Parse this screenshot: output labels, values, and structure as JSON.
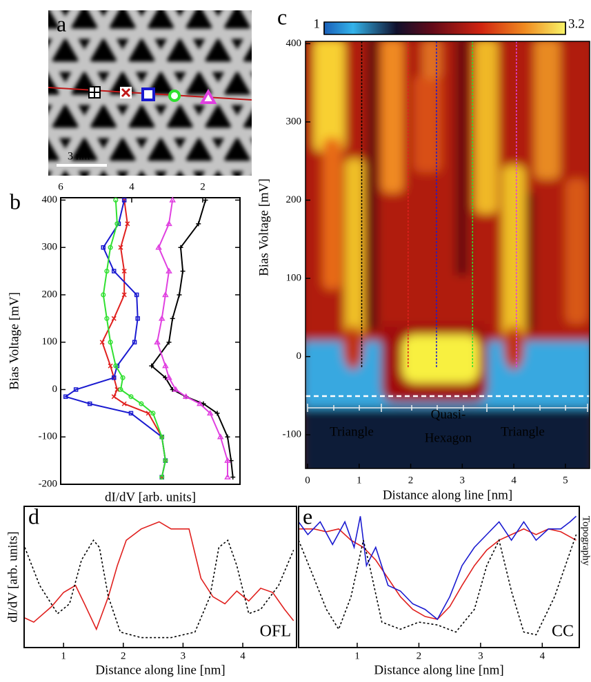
{
  "chart_data": [
    {
      "type": "image",
      "label": "a",
      "scale_bar": "3 nm"
    },
    {
      "type": "line",
      "orientation": "horizontal",
      "label": "b",
      "xlabel": "dI/dV [arb. units]",
      "ylabel": "Bias Voltage [mV]",
      "x_axis": "top",
      "xlim": [
        6.0,
        0.95
      ],
      "xticks": [
        6,
        4,
        2
      ],
      "ylim": [
        -200,
        405
      ],
      "yticks": [
        -200,
        -100,
        0,
        100,
        200,
        300,
        400
      ],
      "y": [
        400,
        350,
        300,
        250,
        200,
        150,
        100,
        50,
        25,
        0,
        -15,
        -30,
        -50,
        -100,
        -150,
        -185
      ],
      "series": [
        {
          "color": "#000000",
          "marker": "plus",
          "values": [
            1.92,
            2.12,
            2.62,
            2.56,
            2.66,
            2.85,
            2.95,
            3.44,
            3.05,
            2.85,
            2.47,
            1.98,
            1.59,
            1.3,
            1.2,
            1.15
          ]
        },
        {
          "color": "#e0201e",
          "marker": "x",
          "values": [
            4.21,
            4.12,
            4.31,
            4.21,
            4.21,
            4.5,
            4.83,
            4.6,
            4.5,
            4.41,
            4.5,
            4.21,
            3.53,
            3.15,
            3.05,
            3.15
          ]
        },
        {
          "color": "#1a1ad0",
          "marker": "square",
          "values": [
            4.21,
            4.37,
            4.8,
            4.5,
            3.86,
            3.83,
            3.92,
            4.41,
            4.5,
            5.57,
            5.86,
            5.18,
            4.02,
            3.15,
            3.05,
            3.15
          ]
        },
        {
          "color": "#30e030",
          "marker": "circle",
          "values": [
            4.45,
            4.41,
            4.6,
            4.7,
            4.8,
            4.7,
            4.6,
            4.45,
            4.25,
            4.31,
            4.02,
            3.73,
            3.4,
            3.15,
            3.05,
            3.15
          ]
        },
        {
          "color": "#e040e0",
          "marker": "triangle",
          "values": [
            2.85,
            2.95,
            3.24,
            2.95,
            3.05,
            3.15,
            3.28,
            3.05,
            2.95,
            2.76,
            2.47,
            2.08,
            1.79,
            1.5,
            1.3,
            1.3
          ]
        }
      ]
    },
    {
      "type": "heatmap",
      "label": "c",
      "xlabel": "Distance along line [nm]",
      "ylabel": "Bias Voltage [mV]",
      "xlim": [
        -0.04,
        5.47
      ],
      "xticks": [
        0,
        1,
        2,
        3,
        4,
        5
      ],
      "ylim": [
        -143,
        403
      ],
      "yticks": [
        -100,
        0,
        100,
        200,
        300,
        400
      ],
      "colorbar": {
        "lim": [
          1,
          3.2
        ],
        "ticks": [
          1,
          3.2
        ]
      },
      "profiles": {
        "x": [
          1.05,
          1.95,
          2.5,
          3.2,
          4.05
        ],
        "colors": [
          "#000000",
          "#e0201e",
          "#1a1ad0",
          "#30e030",
          "#e040e0"
        ]
      },
      "annotations": [
        "Triangle",
        "Quasi-",
        "Hexagon",
        "Triangle"
      ]
    },
    {
      "type": "line",
      "label": "d",
      "xlabel": "Distance along line [nm]",
      "ylabel": "dI/dV [arb. units]",
      "ylabel_color": "#e0201e",
      "annotation": "OFL",
      "annotation_color": "#e0201e",
      "xlim": [
        0.34,
        4.9
      ],
      "xticks": [
        1,
        2,
        3,
        4
      ],
      "ylim": [
        0,
        1
      ],
      "series": [
        {
          "color": "#e0201e",
          "dash": false,
          "x": [
            0.35,
            0.5,
            0.8,
            1.0,
            1.2,
            1.35,
            1.55,
            1.75,
            1.9,
            2.05,
            2.3,
            2.6,
            2.8,
            3.1,
            3.3,
            3.5,
            3.7,
            3.9,
            4.1,
            4.3,
            4.5,
            4.7,
            4.85
          ],
          "values": [
            0.21,
            0.18,
            0.29,
            0.39,
            0.44,
            0.31,
            0.13,
            0.36,
            0.58,
            0.76,
            0.84,
            0.89,
            0.84,
            0.84,
            0.49,
            0.36,
            0.31,
            0.4,
            0.33,
            0.42,
            0.39,
            0.27,
            0.19
          ]
        },
        {
          "color": "#000000",
          "dash": true,
          "x": [
            0.35,
            0.6,
            0.9,
            1.1,
            1.3,
            1.5,
            1.6,
            1.75,
            1.95,
            2.3,
            2.8,
            3.2,
            3.45,
            3.6,
            3.75,
            3.9,
            4.1,
            4.3,
            4.6,
            4.85
          ],
          "values": [
            0.71,
            0.44,
            0.24,
            0.31,
            0.62,
            0.76,
            0.71,
            0.36,
            0.11,
            0.07,
            0.07,
            0.11,
            0.36,
            0.71,
            0.76,
            0.58,
            0.24,
            0.27,
            0.44,
            0.69
          ]
        }
      ]
    },
    {
      "type": "line",
      "label": "e",
      "xlabel": "Distance along line [nm]",
      "y2label": "Topography",
      "annotation": "CC",
      "annotation_color": "#e0201e",
      "xlim": [
        0.05,
        4.6
      ],
      "xticks": [
        1,
        2,
        3,
        4
      ],
      "ylim": [
        0,
        1
      ],
      "series": [
        {
          "color": "#e0201e",
          "dash": false,
          "x": [
            0.05,
            0.3,
            0.5,
            0.7,
            0.9,
            1.1,
            1.3,
            1.5,
            1.7,
            1.9,
            2.1,
            2.3,
            2.5,
            2.7,
            2.9,
            3.1,
            3.3,
            3.5,
            3.7,
            3.9,
            4.1,
            4.3,
            4.55
          ],
          "values": [
            0.84,
            0.84,
            0.82,
            0.84,
            0.76,
            0.71,
            0.62,
            0.49,
            0.36,
            0.27,
            0.22,
            0.2,
            0.29,
            0.44,
            0.58,
            0.69,
            0.76,
            0.8,
            0.84,
            0.8,
            0.84,
            0.82,
            0.76
          ]
        },
        {
          "color": "#1a1ad0",
          "dash": false,
          "x": [
            0.05,
            0.2,
            0.4,
            0.6,
            0.8,
            0.95,
            1.05,
            1.15,
            1.3,
            1.5,
            1.7,
            1.9,
            2.1,
            2.3,
            2.5,
            2.7,
            2.9,
            3.1,
            3.3,
            3.5,
            3.7,
            3.9,
            4.1,
            4.3,
            4.45,
            4.55
          ],
          "values": [
            0.89,
            0.8,
            0.89,
            0.73,
            0.89,
            0.71,
            0.93,
            0.58,
            0.71,
            0.44,
            0.4,
            0.31,
            0.27,
            0.2,
            0.36,
            0.58,
            0.71,
            0.8,
            0.89,
            0.76,
            0.89,
            0.76,
            0.84,
            0.84,
            0.89,
            0.93
          ]
        },
        {
          "color": "#000000",
          "dash": true,
          "x": [
            0.05,
            0.3,
            0.5,
            0.7,
            0.9,
            1.1,
            1.2,
            1.4,
            1.7,
            2.0,
            2.3,
            2.6,
            2.9,
            3.1,
            3.3,
            3.5,
            3.7,
            3.9,
            4.2,
            4.55
          ],
          "values": [
            0.76,
            0.49,
            0.27,
            0.13,
            0.36,
            0.76,
            0.58,
            0.18,
            0.13,
            0.18,
            0.16,
            0.11,
            0.27,
            0.58,
            0.76,
            0.4,
            0.11,
            0.09,
            0.36,
            0.8
          ]
        }
      ]
    }
  ]
}
